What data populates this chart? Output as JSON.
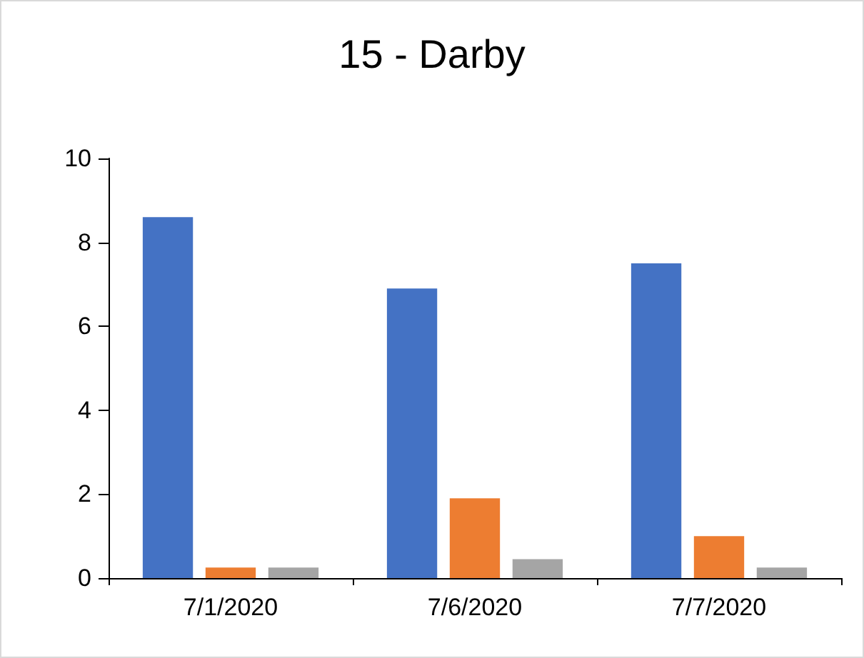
{
  "chart_data": {
    "type": "bar",
    "title": "15 - Darby",
    "categories": [
      "7/1/2020",
      "7/6/2020",
      "7/7/2020"
    ],
    "series": [
      {
        "color": "#4472c4",
        "values": [
          8.6,
          6.9,
          7.5
        ]
      },
      {
        "color": "#ed7d31",
        "values": [
          0.25,
          1.9,
          1.0
        ]
      },
      {
        "color": "#a5a5a5",
        "values": [
          0.25,
          0.45,
          0.25
        ]
      }
    ],
    "ylim": [
      0,
      10
    ],
    "yticks": [
      0,
      2,
      4,
      6,
      8,
      10
    ],
    "grid": false
  }
}
